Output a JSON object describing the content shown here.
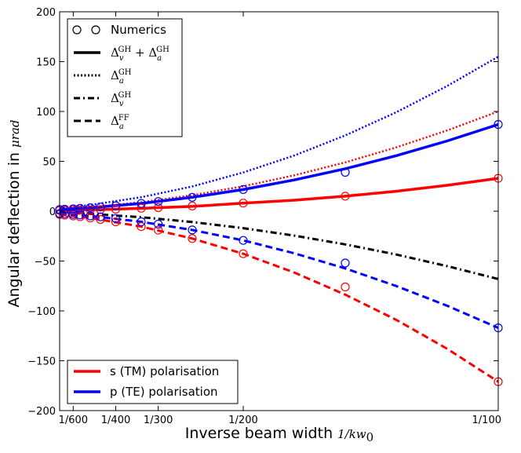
{
  "chart_data": {
    "type": "line",
    "xlabel": "Inverse beam width",
    "xlabel_math": "1/kw",
    "xlabel_math_sub": "0",
    "ylabel": "Angular deflection in",
    "ylabel_math": "μrad",
    "xlim": [
      0.0014,
      0.01
    ],
    "ylim": [
      -200,
      200
    ],
    "x_ticks": [
      {
        "value": 0.0016667,
        "label": "1/600"
      },
      {
        "value": 0.0025,
        "label": "1/400"
      },
      {
        "value": 0.0033333,
        "label": "1/300"
      },
      {
        "value": 0.005,
        "label": "1/200"
      },
      {
        "value": 0.01,
        "label": "1/100"
      }
    ],
    "y_ticks": [
      -200,
      -150,
      -100,
      -50,
      0,
      50,
      100,
      150,
      200
    ],
    "y_tick_labels": [
      "−200",
      "−150",
      "−100",
      "−50",
      "0",
      "50",
      "100",
      "150",
      "200"
    ],
    "series": [
      {
        "name": "s total",
        "polarisation": "s (TM)",
        "style": "solid",
        "color": "#ff0000",
        "x": [
          0.0014,
          0.002,
          0.003,
          0.004,
          0.005,
          0.006,
          0.007,
          0.008,
          0.009,
          0.01
        ],
        "y": [
          0.9,
          1.3,
          2.8,
          4.8,
          8.0,
          11.0,
          15.0,
          20.0,
          26.0,
          33.0
        ]
      },
      {
        "name": "s Delta_a^GH",
        "polarisation": "s (TM)",
        "style": "dotted",
        "color": "#ff0000",
        "x": [
          0.0014,
          0.002,
          0.003,
          0.004,
          0.005,
          0.006,
          0.007,
          0.008,
          0.009,
          0.01
        ],
        "y": [
          2.0,
          4.0,
          9.0,
          16.0,
          25.0,
          36.0,
          49.0,
          64.0,
          81.0,
          100.0
        ]
      },
      {
        "name": "s Delta_a^FF",
        "polarisation": "s (TM)",
        "style": "dashed",
        "color": "#ff0000",
        "x": [
          0.0014,
          0.002,
          0.003,
          0.004,
          0.005,
          0.006,
          0.007,
          0.008,
          0.009,
          0.01
        ],
        "y": [
          -3.4,
          -6.8,
          -15.4,
          -27.4,
          -42.7,
          -61.5,
          -83.7,
          -109.0,
          -138.0,
          -171.0
        ]
      },
      {
        "name": "p total",
        "polarisation": "p (TE)",
        "style": "solid",
        "color": "#0000ff",
        "x": [
          0.0014,
          0.002,
          0.003,
          0.004,
          0.005,
          0.006,
          0.007,
          0.008,
          0.009,
          0.01
        ],
        "y": [
          1.7,
          3.5,
          7.8,
          13.9,
          21.7,
          31.3,
          42.6,
          55.7,
          70.5,
          87.0
        ]
      },
      {
        "name": "p Delta_a^GH",
        "polarisation": "p (TE)",
        "style": "dotted",
        "color": "#0000ff",
        "x": [
          0.0014,
          0.002,
          0.003,
          0.004,
          0.005,
          0.006,
          0.007,
          0.008,
          0.009,
          0.01
        ],
        "y": [
          3.0,
          6.2,
          14.0,
          24.8,
          38.8,
          55.8,
          76.0,
          99.2,
          125.6,
          155.0
        ]
      },
      {
        "name": "p Delta_a^FF",
        "polarisation": "p (TE)",
        "style": "dashed",
        "color": "#0000ff",
        "x": [
          0.0014,
          0.002,
          0.003,
          0.004,
          0.005,
          0.006,
          0.007,
          0.008,
          0.009,
          0.01
        ],
        "y": [
          -2.3,
          -4.7,
          -10.6,
          -18.8,
          -29.3,
          -42.2,
          -57.4,
          -75.0,
          -94.9,
          -117.0
        ]
      },
      {
        "name": "Delta_v^GH",
        "polarisation": "both",
        "style": "dashdot",
        "color": "#000000",
        "x": [
          0.0014,
          0.002,
          0.003,
          0.004,
          0.005,
          0.006,
          0.007,
          0.008,
          0.009,
          0.01
        ],
        "y": [
          -1.3,
          -2.7,
          -6.1,
          -10.9,
          -17.0,
          -24.5,
          -33.3,
          -43.5,
          -55.1,
          -68.0
        ]
      }
    ],
    "numerics": [
      {
        "color": "#ff0000",
        "x": [
          0.0014,
          0.0015,
          0.0016667,
          0.0018,
          0.002,
          0.0022,
          0.0025,
          0.003,
          0.0033333,
          0.004,
          0.005,
          0.007,
          0.01
        ],
        "y_top": [
          0.8,
          0.9,
          1.1,
          1.1,
          1.3,
          1.6,
          2.0,
          2.9,
          3.6,
          5.2,
          8.1,
          15.0,
          33.0
        ],
        "y_bottom": [
          -3.3,
          -3.9,
          -4.8,
          -5.5,
          -6.8,
          -8.3,
          -10.7,
          -15.4,
          -19.0,
          -27.4,
          -42.7,
          -76.0,
          -171.0
        ]
      },
      {
        "color": "#0000ff",
        "x": [
          0.0014,
          0.0015,
          0.0016667,
          0.0018,
          0.002,
          0.0022,
          0.0025,
          0.003,
          0.0033333,
          0.004,
          0.005,
          0.007,
          0.01
        ],
        "y_top": [
          1.7,
          2.0,
          2.4,
          2.8,
          3.5,
          4.2,
          5.4,
          7.8,
          9.7,
          13.9,
          21.7,
          39.0,
          87.0
        ],
        "y_bottom": [
          -2.3,
          -2.6,
          -3.3,
          -3.8,
          -4.7,
          -5.7,
          -7.3,
          -10.6,
          -13.0,
          -18.8,
          -29.3,
          -52.0,
          -117.0
        ]
      }
    ],
    "legend_top": {
      "position": "top-left",
      "entries": [
        {
          "style": "markers",
          "label": "Numerics"
        },
        {
          "style": "solid",
          "label": "Δv^GH + Δa^GH",
          "parts": [
            "Δ",
            "v",
            "GH",
            " + Δ",
            "a",
            "GH"
          ]
        },
        {
          "style": "dotted",
          "label": "Δa^GH",
          "parts": [
            "Δ",
            "a",
            "GH"
          ]
        },
        {
          "style": "dashdot",
          "label": "Δv^GH",
          "parts": [
            "Δ",
            "v",
            "GH"
          ]
        },
        {
          "style": "dashed",
          "label": "Δa^FF",
          "parts": [
            "Δ",
            "a",
            "FF"
          ]
        }
      ]
    },
    "legend_bottom": {
      "position": "bottom-left",
      "entries": [
        {
          "color": "#ff0000",
          "label": "s (TM) polarisation"
        },
        {
          "color": "#0000ff",
          "label": "p (TE) polarisation"
        }
      ]
    }
  }
}
